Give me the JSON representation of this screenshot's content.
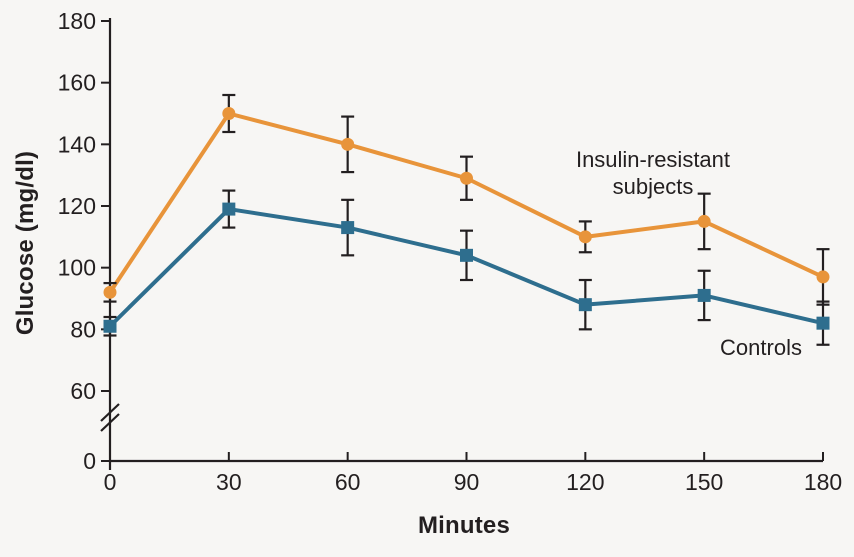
{
  "figure": {
    "background": "#F7F6F4",
    "axis_color": "#231F20",
    "text_color": "#231F20"
  },
  "chart_data": {
    "type": "line",
    "title": "",
    "xlabel": "Minutes",
    "ylabel": "Glucose (mg/dl)",
    "x": [
      0,
      30,
      60,
      90,
      120,
      150,
      180
    ],
    "x_ticks": [
      "0",
      "30",
      "60",
      "90",
      "120",
      "150",
      "180"
    ],
    "y_ticks": [
      "0",
      "60",
      "80",
      "100",
      "120",
      "140",
      "160",
      "180"
    ],
    "ylim": [
      0,
      180
    ],
    "axis_break_between": [
      0,
      60
    ],
    "grid": false,
    "legend_position": "direct-labels-on-plot",
    "error_bar_color": "#231F20",
    "series": [
      {
        "name": "Insulin-resistant subjects",
        "color": "#E8943A",
        "marker": "circle",
        "values": [
          92,
          150,
          140,
          129,
          110,
          115,
          97
        ],
        "errors": [
          3,
          6,
          9,
          7,
          5,
          9,
          9
        ]
      },
      {
        "name": "Controls",
        "color": "#2E6E8E",
        "marker": "square",
        "values": [
          81,
          119,
          113,
          104,
          88,
          91,
          82
        ],
        "errors": [
          3,
          6,
          9,
          8,
          8,
          8,
          7
        ]
      }
    ],
    "annotations": {
      "insulin_resistant": {
        "line1": "Insulin-resistant",
        "line2": "subjects"
      },
      "controls": {
        "label": "Controls"
      }
    }
  }
}
